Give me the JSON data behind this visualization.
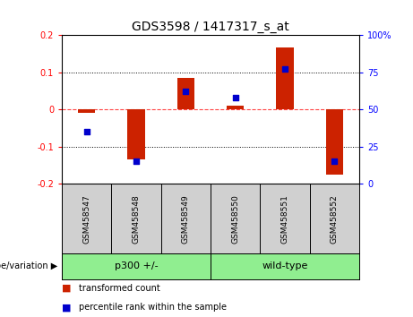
{
  "title": "GDS3598 / 1417317_s_at",
  "samples": [
    "GSM458547",
    "GSM458548",
    "GSM458549",
    "GSM458550",
    "GSM458551",
    "GSM458552"
  ],
  "red_values": [
    -0.01,
    -0.135,
    0.085,
    0.01,
    0.165,
    -0.175
  ],
  "blue_values": [
    35,
    15,
    62,
    58,
    77,
    15
  ],
  "ylim_left": [
    -0.2,
    0.2
  ],
  "ylim_right": [
    0,
    100
  ],
  "left_ticks": [
    -0.2,
    -0.1,
    0,
    0.1,
    0.2
  ],
  "right_ticks": [
    0,
    25,
    50,
    75,
    100
  ],
  "left_tick_labels": [
    "-0.2",
    "-0.1",
    "0",
    "0.1",
    "0.2"
  ],
  "right_tick_labels": [
    "0",
    "25",
    "50",
    "75",
    "100%"
  ],
  "hline_color": "#ff4444",
  "bar_color": "#cc2200",
  "dot_color": "#0000cc",
  "bar_width": 0.35,
  "group_label": "genotype/variation",
  "group1_label": "p300 +/-",
  "group2_label": "wild-type",
  "legend1": "transformed count",
  "legend2": "percentile rank within the sample",
  "bg_color": "#d0d0d0",
  "group_color": "#90ee90"
}
